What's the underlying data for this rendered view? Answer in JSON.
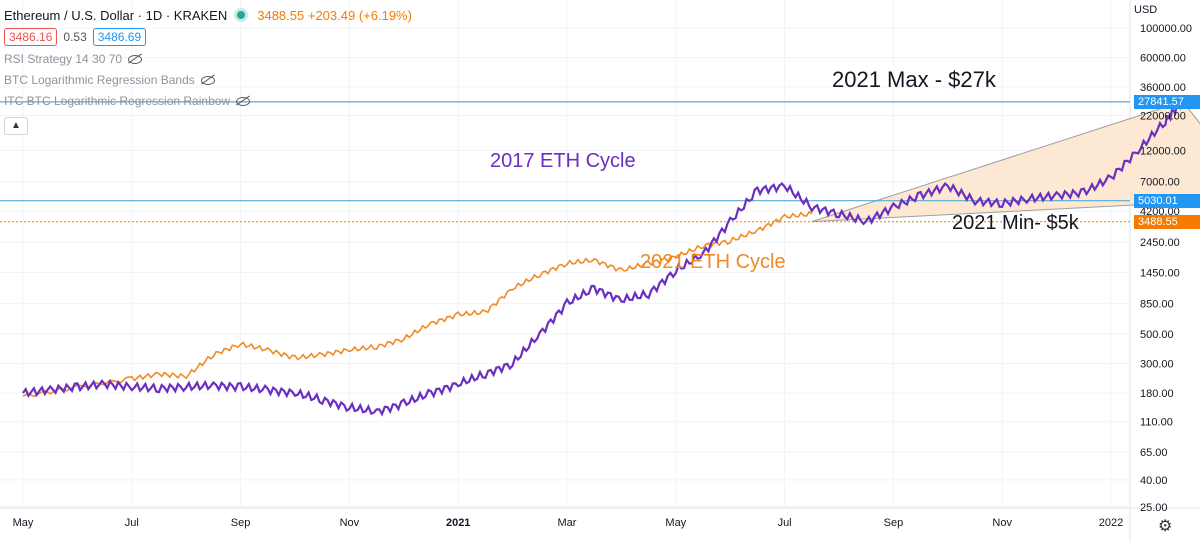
{
  "header": {
    "symbol": "Ethereum / U.S. Dollar · 1D · KRAKEN",
    "price": "3488.55",
    "change": "+203.49 (+6.19%)",
    "bid": "3486.16",
    "spread": "0.53",
    "ask": "3486.69"
  },
  "indicators": [
    {
      "name": "RSI Strategy 14 30 70",
      "icon": "eye-off-icon"
    },
    {
      "name": "BTC Logarithmic Regression Bands",
      "icon": "eye-off-icon"
    },
    {
      "name": "ITC BTC Logarithmic Regression Rainbow",
      "icon": "eye-off-icon"
    }
  ],
  "collapse_icon": "chevron-up-icon",
  "settings_icon": "gear-icon",
  "axis": {
    "currency": "USD",
    "y_ticks": [
      "100000.00",
      "60000.00",
      "36000.00",
      "22000.00",
      "12000.00",
      "7000.00",
      "4200.00",
      "2450.00",
      "1450.00",
      "850.00",
      "500.00",
      "300.00",
      "180.00",
      "110.00",
      "65.00",
      "40.00",
      "25.00"
    ],
    "y_tick_values": [
      100000,
      60000,
      36000,
      22000,
      12000,
      7000,
      4200,
      2450,
      1450,
      850,
      500,
      300,
      180,
      110,
      65,
      40,
      25
    ],
    "x_ticks": [
      "May",
      "Jul",
      "Sep",
      "Nov",
      "2021",
      "Mar",
      "May",
      "Jul",
      "Sep",
      "Nov",
      "2022"
    ]
  },
  "price_tags": [
    {
      "label": "27841.57",
      "value": 27841.57,
      "color": "#2196f3"
    },
    {
      "label": "5030.01",
      "value": 5030.01,
      "color": "#2196f3"
    },
    {
      "label": "3488.55",
      "value": 3488.55,
      "color": "#f57c00"
    }
  ],
  "annotations": {
    "max": "2021 Max - $27k",
    "min": "2021 Min- $5k",
    "cycle_2017": "2017 ETH Cycle",
    "cycle_2021": "2021 ETH Cycle"
  },
  "colors": {
    "cycle_2017": "#6a2fc0",
    "cycle_2021": "#f08a24",
    "hline": "#5aa9d8",
    "fan_fill": "#fde3c8"
  },
  "chart_data": {
    "type": "line",
    "y_scale": "log",
    "ylim": [
      25,
      130000
    ],
    "x_range_months": [
      "2020-04",
      "2022-01"
    ],
    "series": [
      {
        "name": "2017 ETH Cycle",
        "points": [
          [
            0,
            180
          ],
          [
            0.5,
            190
          ],
          [
            1,
            200
          ],
          [
            1.5,
            210
          ],
          [
            2,
            200
          ],
          [
            2.5,
            195
          ],
          [
            3,
            200
          ],
          [
            3.5,
            205
          ],
          [
            4,
            200
          ],
          [
            4.5,
            190
          ],
          [
            5,
            180
          ],
          [
            5.5,
            160
          ],
          [
            6,
            140
          ],
          [
            6.5,
            130
          ],
          [
            7,
            150
          ],
          [
            7.5,
            180
          ],
          [
            8,
            210
          ],
          [
            8.5,
            250
          ],
          [
            9,
            300
          ],
          [
            9.5,
            500
          ],
          [
            10,
            850
          ],
          [
            10.5,
            1100
          ],
          [
            11,
            900
          ],
          [
            11.5,
            1000
          ],
          [
            12,
            1500
          ],
          [
            12.5,
            2000
          ],
          [
            13,
            3500
          ],
          [
            13.5,
            6000
          ],
          [
            14,
            6500
          ],
          [
            14.5,
            4500
          ],
          [
            15,
            4000
          ],
          [
            15.5,
            3500
          ],
          [
            16,
            4500
          ],
          [
            16.5,
            5500
          ],
          [
            17,
            6500
          ],
          [
            17.5,
            5000
          ],
          [
            18,
            4800
          ],
          [
            18.5,
            5200
          ],
          [
            19,
            5500
          ],
          [
            19.5,
            5800
          ],
          [
            20,
            7500
          ],
          [
            20.5,
            12000
          ],
          [
            21,
            20000
          ],
          [
            21.3,
            27841
          ]
        ]
      },
      {
        "name": "2021 ETH Cycle",
        "points": [
          [
            0,
            170
          ],
          [
            1,
            200
          ],
          [
            2,
            230
          ],
          [
            2.5,
            250
          ],
          [
            3,
            240
          ],
          [
            3.5,
            350
          ],
          [
            4,
            420
          ],
          [
            4.5,
            380
          ],
          [
            5,
            330
          ],
          [
            5.5,
            350
          ],
          [
            6,
            380
          ],
          [
            6.5,
            400
          ],
          [
            7,
            460
          ],
          [
            7.5,
            600
          ],
          [
            8,
            700
          ],
          [
            8.5,
            730
          ],
          [
            9,
            1100
          ],
          [
            9.5,
            1400
          ],
          [
            10,
            1700
          ],
          [
            10.5,
            1800
          ],
          [
            11,
            1500
          ],
          [
            11.5,
            1700
          ],
          [
            12,
            1900
          ],
          [
            12.5,
            2300
          ],
          [
            13,
            2500
          ],
          [
            13.5,
            3000
          ],
          [
            14,
            3800
          ],
          [
            14.5,
            4000
          ]
        ]
      }
    ],
    "fan": {
      "start": [
        14.5,
        3500
      ],
      "end_max": [
        21.3,
        27841.57
      ],
      "end_min": [
        22.0,
        5030.01
      ]
    },
    "hlines": [
      27841.57,
      5030.01
    ],
    "current_price": 3488.55
  }
}
